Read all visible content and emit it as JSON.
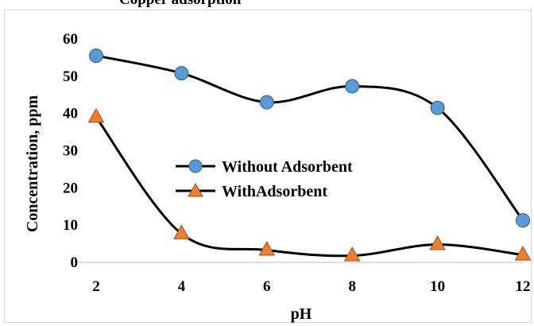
{
  "header_fragment": "Copper adsorption",
  "chart_data": {
    "type": "line",
    "title": "",
    "xlabel": "pH",
    "ylabel": "Concentration, ppm",
    "x": [
      2,
      4,
      6,
      8,
      10,
      12
    ],
    "xlim": [
      2,
      12
    ],
    "ylim": [
      0,
      60
    ],
    "x_ticks": [
      "2",
      "4",
      "6",
      "8",
      "10",
      "12"
    ],
    "y_ticks": [
      "0",
      "10",
      "20",
      "30",
      "40",
      "50",
      "60"
    ],
    "smooth": true,
    "grid": false,
    "legend_position": "center",
    "series": [
      {
        "name": "Without Adsorbent",
        "values": [
          55.5,
          50.8,
          43.0,
          47.3,
          41.5,
          11.3
        ],
        "marker": "circle",
        "line_color": "#000000",
        "marker_fill": "#5b9bd5",
        "marker_stroke": "#2f5f8a"
      },
      {
        "name": "WithAdsorbent",
        "values": [
          39.0,
          7.7,
          3.3,
          1.8,
          4.8,
          2.0
        ],
        "marker": "triangle",
        "line_color": "#000000",
        "marker_fill": "#ed7d31",
        "marker_stroke": "#a0521c"
      }
    ]
  }
}
